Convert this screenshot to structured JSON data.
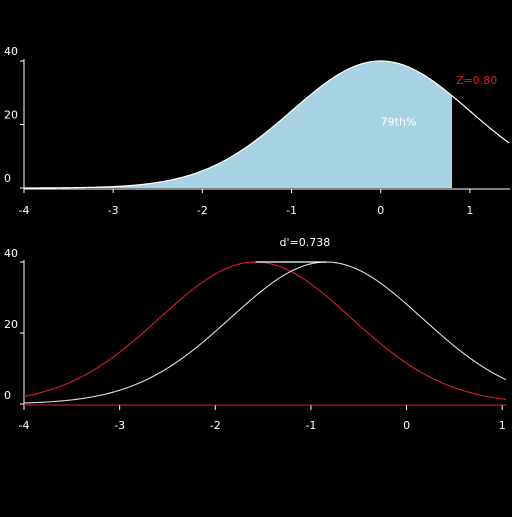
{
  "colors": {
    "background": "#000000",
    "axis": "#ffffff",
    "fill": "#a8d3e3",
    "curve": "#ffffff",
    "z_label": "#e8141e",
    "pct_label": "#ffffff",
    "noise_curve": "#d81f24",
    "signal_curve": "#cfe3ec",
    "dprime_label": "#ffffff"
  },
  "chart_data": [
    {
      "type": "area",
      "description_curve": "normal density scaled to peak 40",
      "peak_value": 40,
      "mean": 0,
      "sd": 1,
      "xlim": [
        -4,
        1.45
      ],
      "ylim": [
        0,
        40
      ],
      "x_ticks": [
        -4,
        -3,
        -2,
        -1,
        0,
        1
      ],
      "x_tick_labels": [
        "-4",
        "-3",
        "-2",
        "-1",
        "0",
        "1"
      ],
      "y_ticks": [
        0,
        20,
        40
      ],
      "y_tick_labels": [
        "0",
        "20",
        "40"
      ],
      "shade_upper": 0.8,
      "z_label": "Z=0.80",
      "pct_label": "79th%",
      "pct_label_x": 0.2,
      "pct_label_y": 21
    },
    {
      "type": "line",
      "xlim": [
        -4,
        1.05
      ],
      "ylim": [
        0,
        40
      ],
      "x_ticks": [
        -4,
        -3,
        -2,
        -1,
        0,
        1
      ],
      "x_tick_labels": [
        "-4",
        "-3",
        "-2",
        "-1",
        "0",
        "1"
      ],
      "y_ticks": [
        0,
        20,
        40
      ],
      "y_tick_labels": [
        "0",
        "20",
        "40"
      ],
      "series": [
        {
          "mean": -1.58,
          "sd": 1,
          "peak_value": 40,
          "role": "noise"
        },
        {
          "mean": -0.84,
          "sd": 1,
          "peak_value": 40,
          "role": "signal"
        }
      ],
      "dprime_label": "d'=0.738"
    }
  ]
}
